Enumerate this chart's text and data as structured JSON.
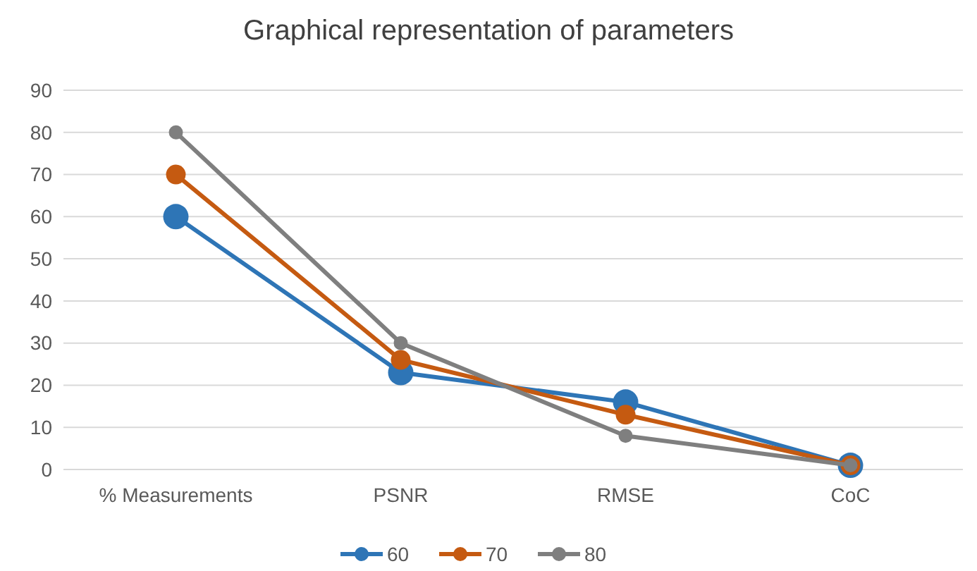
{
  "chart_data": {
    "type": "line",
    "title": "Graphical representation of parameters",
    "categories": [
      "% Measurements",
      "PSNR",
      "RMSE",
      "CoC"
    ],
    "series": [
      {
        "name": "60",
        "color": "#2e75b6",
        "values": [
          60,
          23,
          16,
          1
        ]
      },
      {
        "name": "70",
        "color": "#c55a11",
        "values": [
          70,
          26,
          13,
          1
        ]
      },
      {
        "name": "80",
        "color": "#7f7f7f",
        "values": [
          80,
          30,
          8,
          1
        ]
      }
    ],
    "ylim": [
      0,
      90
    ],
    "yticks": [
      0,
      10,
      20,
      30,
      40,
      50,
      60,
      70,
      80,
      90
    ],
    "grid": "y",
    "legend": "bottom",
    "marker": "circle",
    "line_style": "solid"
  }
}
